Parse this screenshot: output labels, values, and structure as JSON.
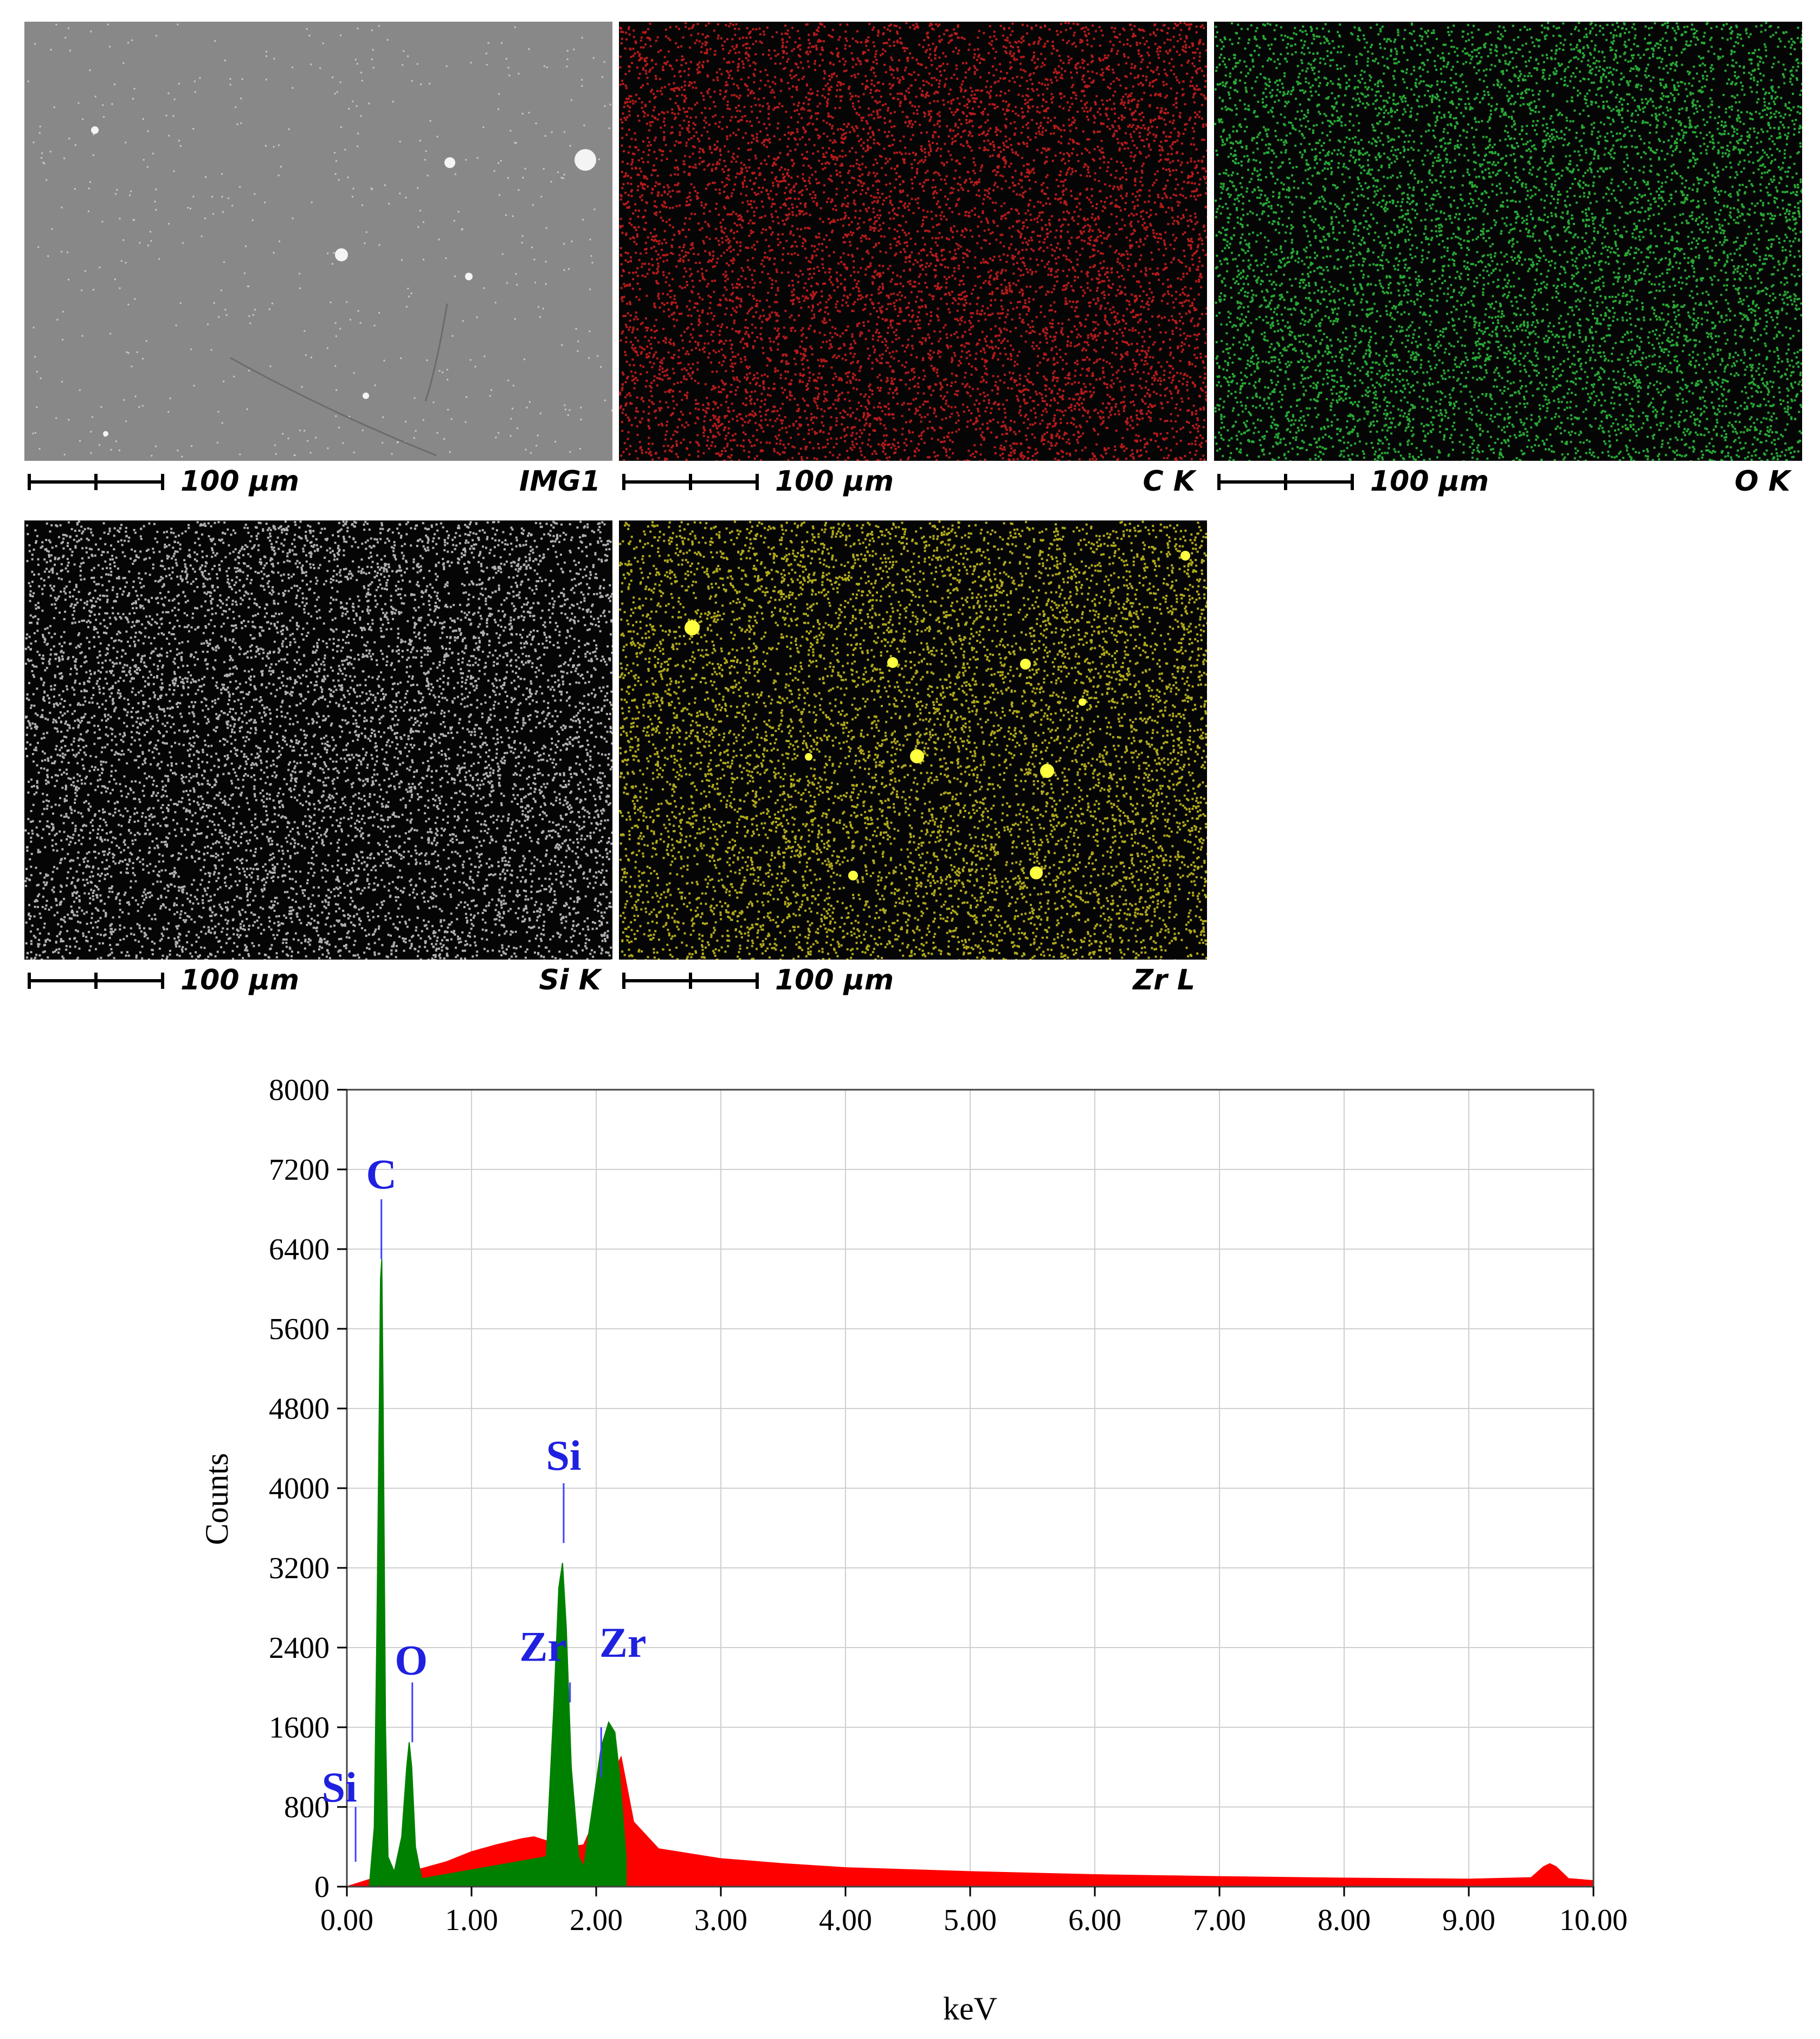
{
  "maps": [
    {
      "label": "IMG1",
      "scale": "100 µm",
      "color": "#8c8c8c",
      "kind": "sem"
    },
    {
      "label": "C K",
      "scale": "100 µm",
      "color": "#e02020",
      "kind": "dots"
    },
    {
      "label": "O K",
      "scale": "100 µm",
      "color": "#30d040",
      "kind": "dots"
    },
    {
      "label": "Si K",
      "scale": "100 µm",
      "color": "#d8d8d8",
      "kind": "dots"
    },
    {
      "label": "Zr L",
      "scale": "100 µm",
      "color": "#d8d020",
      "kind": "dots"
    }
  ],
  "chart_data": {
    "type": "area",
    "xlabel": "keV",
    "ylabel": "Counts",
    "xlim": [
      0,
      10
    ],
    "ylim": [
      0,
      8000
    ],
    "xticks": [
      "0.00",
      "1.00",
      "2.00",
      "3.00",
      "4.00",
      "5.00",
      "6.00",
      "7.00",
      "8.00",
      "9.00",
      "10.00"
    ],
    "yticks": [
      "0",
      "800",
      "1600",
      "2400",
      "3200",
      "4000",
      "4800",
      "5600",
      "6400",
      "7200",
      "8000"
    ],
    "grid": true,
    "series": [
      {
        "color": "#ff0000",
        "x": [
          0.0,
          0.1,
          0.2,
          0.4,
          0.6,
          0.8,
          1.0,
          1.2,
          1.4,
          1.5,
          1.6,
          1.7,
          1.8,
          1.9,
          2.0,
          2.1,
          2.2,
          2.3,
          2.5,
          3.0,
          3.5,
          4.0,
          5.0,
          6.0,
          7.0,
          8.0,
          9.0,
          9.5,
          9.6,
          9.65,
          9.7,
          9.8,
          10.0
        ],
        "y": [
          0,
          40,
          80,
          140,
          180,
          250,
          350,
          420,
          480,
          500,
          460,
          420,
          400,
          420,
          700,
          1050,
          1300,
          650,
          380,
          280,
          230,
          190,
          150,
          120,
          100,
          85,
          75,
          90,
          200,
          230,
          200,
          80,
          60
        ]
      },
      {
        "color": "#008000",
        "x": [
          0.18,
          0.22,
          0.24,
          0.26,
          0.27,
          0.28,
          0.29,
          0.31,
          0.33,
          0.38,
          0.44,
          0.48,
          0.5,
          0.52,
          0.55,
          0.6,
          1.6,
          1.66,
          1.7,
          1.73,
          1.76,
          1.8,
          1.86,
          1.9,
          1.96,
          2.04,
          2.1,
          2.15,
          2.19,
          2.24
        ],
        "y": [
          0,
          600,
          2500,
          4800,
          6100,
          6300,
          5000,
          1600,
          300,
          150,
          500,
          1200,
          1450,
          1200,
          400,
          80,
          300,
          1800,
          3000,
          3250,
          2600,
          1200,
          300,
          200,
          700,
          1400,
          1650,
          1550,
          1100,
          300
        ]
      }
    ],
    "annotations": [
      {
        "text": "C",
        "x": 0.277,
        "line": [
          6900,
          6300
        ]
      },
      {
        "text": "O",
        "x": 0.525,
        "line": [
          2050,
          1450
        ]
      },
      {
        "text": "Si",
        "x": 1.739,
        "line": [
          4050,
          3450
        ]
      },
      {
        "text": "Zr",
        "x": 2.04,
        "line": [
          1600,
          1100
        ]
      },
      {
        "text": "Zr",
        "x": 1.79,
        "line": [
          2050,
          1850
        ]
      },
      {
        "text": "Si",
        "x": 0.07,
        "line": [
          800,
          250
        ]
      }
    ]
  }
}
